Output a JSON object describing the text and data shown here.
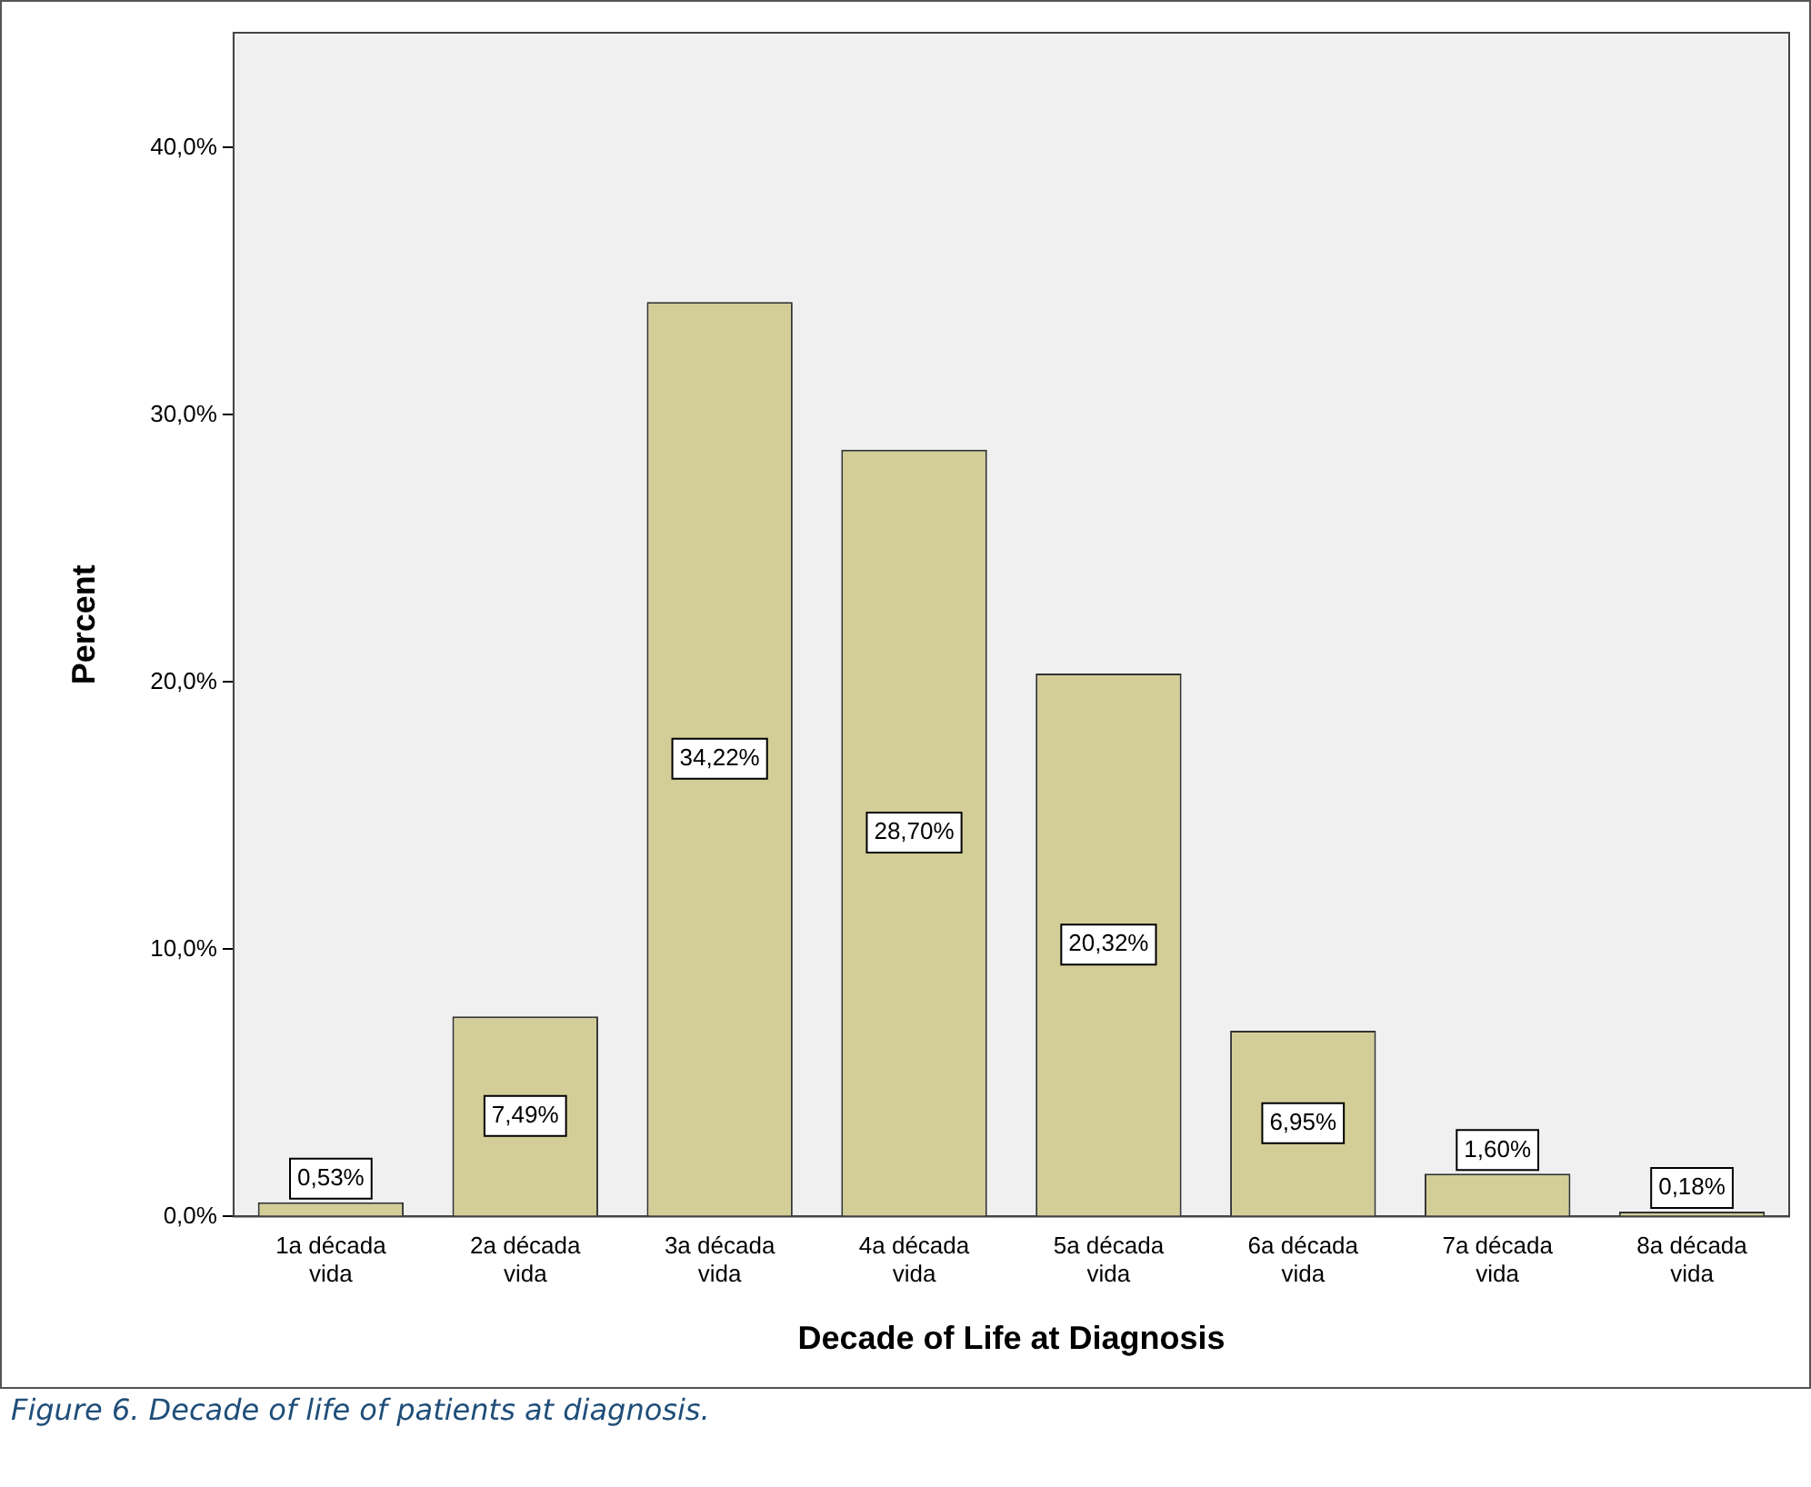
{
  "chart_data": {
    "type": "bar",
    "categories": [
      "1a década vida",
      "2a década vida",
      "3a década vida",
      "4a década vida",
      "5a década vida",
      "6a década vida",
      "7a década vida",
      "8a década vida"
    ],
    "values": [
      0.53,
      7.49,
      34.22,
      28.7,
      20.32,
      6.95,
      1.6,
      0.18
    ],
    "value_labels": [
      "0,53%",
      "7,49%",
      "34,22%",
      "28,70%",
      "20,32%",
      "6,95%",
      "1,60%",
      "0,18%"
    ],
    "color": "#d3ce98",
    "xlabel": "Decade of Life at Diagnosis",
    "ylabel": "Percent",
    "ylim": [
      0,
      44.3
    ],
    "yticks": [
      {
        "value": 0,
        "label": "0,0%"
      },
      {
        "value": 10,
        "label": "10,0%"
      },
      {
        "value": 20,
        "label": "20,0%"
      },
      {
        "value": 30,
        "label": "30,0%"
      },
      {
        "value": 40,
        "label": "40,0%"
      }
    ],
    "grid": false,
    "legend": false,
    "annotations": [
      "Figure 6. Decade of life of patients at diagnosis."
    ]
  }
}
